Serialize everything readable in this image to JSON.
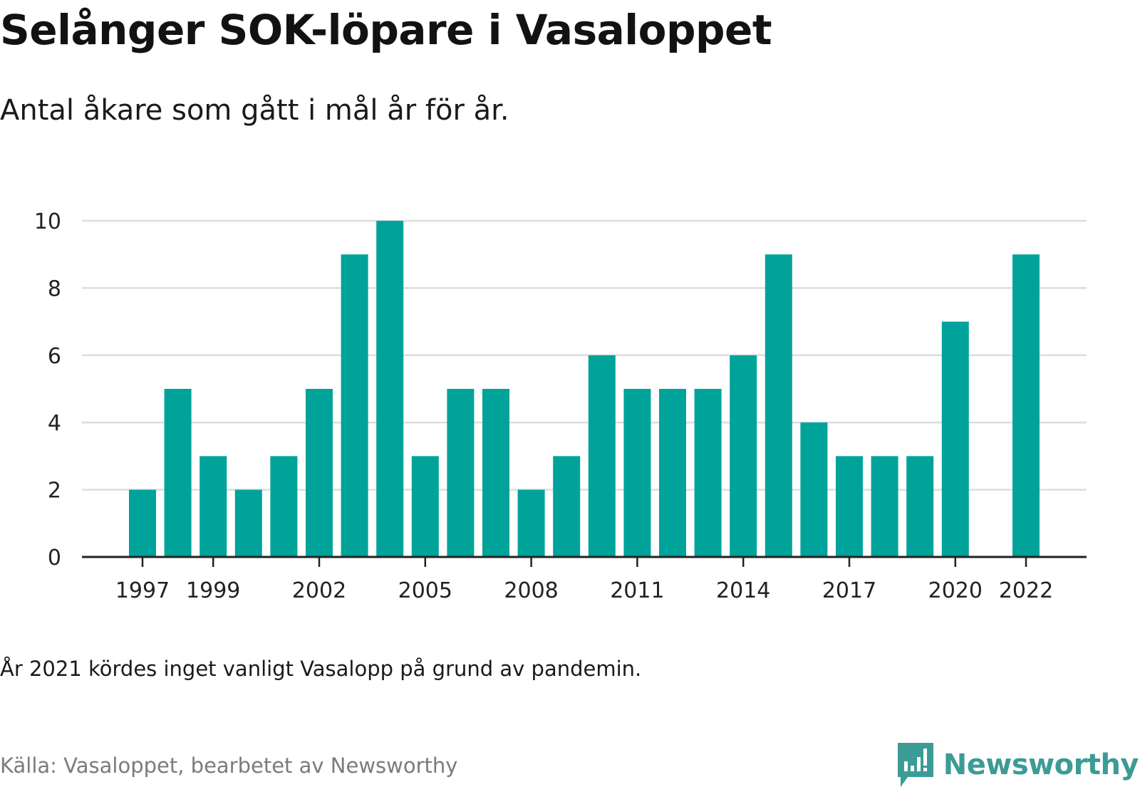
{
  "header": {
    "title": "Selånger SOK-löpare i Vasaloppet",
    "subtitle": "Antal åkare som gått i mål år för år."
  },
  "footer": {
    "note": "År 2021 kördes inget vanligt Vasalopp på grund av pandemin.",
    "source": "Källa: Vasaloppet, bearbetet av Newsworthy",
    "logo_text": "Newsworthy",
    "logo_icon": "newsworthy-bar-chart-icon"
  },
  "colors": {
    "bar": "#00a39a",
    "grid": "#dddddd",
    "axis": "#222222",
    "logo": "#3c9b95"
  },
  "chart_data": {
    "type": "bar",
    "title": "Selånger SOK-löpare i Vasaloppet",
    "subtitle": "Antal åkare som gått i mål år för år.",
    "xlabel": "",
    "ylabel": "",
    "categories": [
      1997,
      1998,
      1999,
      2000,
      2001,
      2002,
      2003,
      2004,
      2005,
      2006,
      2007,
      2008,
      2009,
      2010,
      2011,
      2012,
      2013,
      2014,
      2015,
      2016,
      2017,
      2018,
      2019,
      2020,
      2021,
      2022
    ],
    "values": [
      2,
      5,
      3,
      2,
      3,
      5,
      9,
      10,
      3,
      5,
      5,
      2,
      3,
      6,
      5,
      5,
      5,
      6,
      9,
      4,
      3,
      3,
      3,
      7,
      null,
      9
    ],
    "x_tick_labels": [
      "1997",
      "1999",
      "2002",
      "2005",
      "2008",
      "2011",
      "2014",
      "2017",
      "2020",
      "2022"
    ],
    "y_tick_labels": [
      "0",
      "2",
      "4",
      "6",
      "8",
      "10"
    ],
    "ylim": [
      0,
      10
    ],
    "grid": true,
    "legend": "none"
  }
}
